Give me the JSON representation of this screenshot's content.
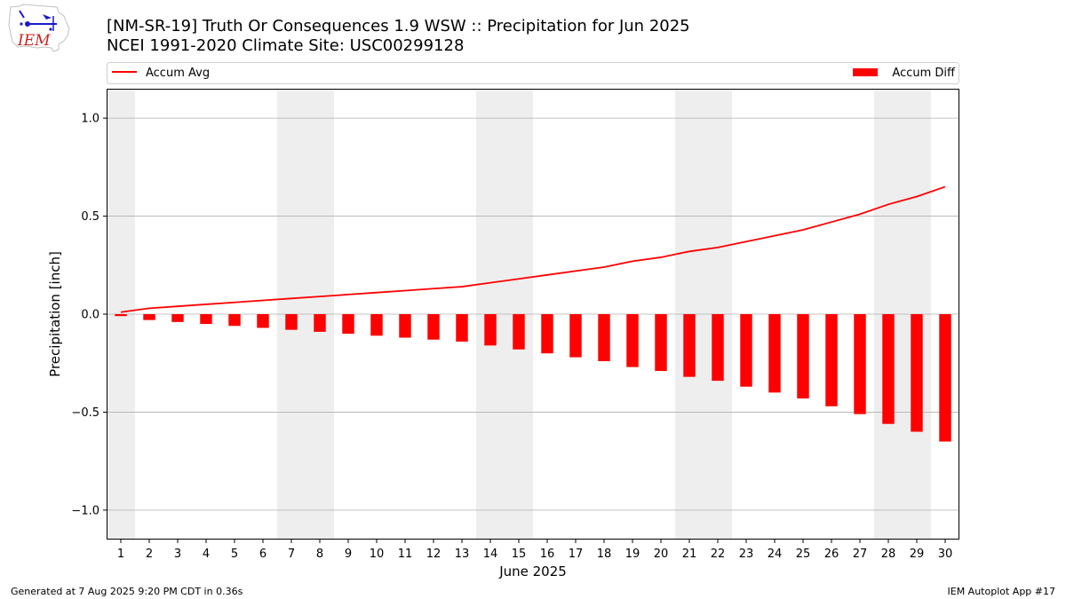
{
  "header": {
    "logo_text": "IEM",
    "title_line1": "[NM-SR-19] Truth Or Consequences 1.9 WSW :: Precipitation for Jun 2025",
    "title_line2": "NCEI 1991-2020 Climate Site: USC00299128"
  },
  "legend": {
    "line_label": "Accum Avg",
    "bar_label": "Accum Diff",
    "placement": "top"
  },
  "footer": {
    "left": "Generated at 7 Aug 2025 9:20 PM CDT in 0.36s",
    "right": "IEM Autoplot App #17"
  },
  "colors": {
    "series": "#ff0000",
    "weekend_shade": "#eeeeee",
    "grid": "#b0b0b0"
  },
  "chart_data": {
    "type": "bar",
    "xlabel": "June 2025",
    "ylabel": "Precipitation [inch]",
    "ylim": [
      -1.15,
      1.15
    ],
    "yticks": [
      -1.0,
      -0.5,
      0.0,
      0.5,
      1.0
    ],
    "ytick_labels": [
      "−1.0",
      "−0.5",
      "0.0",
      "0.5",
      "1.0"
    ],
    "grid": "horizontal",
    "x": [
      1,
      2,
      3,
      4,
      5,
      6,
      7,
      8,
      9,
      10,
      11,
      12,
      13,
      14,
      15,
      16,
      17,
      18,
      19,
      20,
      21,
      22,
      23,
      24,
      25,
      26,
      27,
      28,
      29,
      30
    ],
    "weekend_days": [
      1,
      7,
      8,
      14,
      15,
      21,
      22,
      28,
      29
    ],
    "series": [
      {
        "name": "Accum Diff",
        "type": "bar",
        "values": [
          -0.01,
          -0.03,
          -0.04,
          -0.05,
          -0.06,
          -0.07,
          -0.08,
          -0.09,
          -0.1,
          -0.11,
          -0.12,
          -0.13,
          -0.14,
          -0.16,
          -0.18,
          -0.2,
          -0.22,
          -0.24,
          -0.27,
          -0.29,
          -0.32,
          -0.34,
          -0.37,
          -0.4,
          -0.43,
          -0.47,
          -0.51,
          -0.56,
          -0.6,
          -0.65
        ]
      },
      {
        "name": "Accum Avg",
        "type": "line",
        "values": [
          0.01,
          0.03,
          0.04,
          0.05,
          0.06,
          0.07,
          0.08,
          0.09,
          0.1,
          0.11,
          0.12,
          0.13,
          0.14,
          0.16,
          0.18,
          0.2,
          0.22,
          0.24,
          0.27,
          0.29,
          0.32,
          0.34,
          0.37,
          0.4,
          0.43,
          0.47,
          0.51,
          0.56,
          0.6,
          0.65
        ]
      }
    ]
  }
}
